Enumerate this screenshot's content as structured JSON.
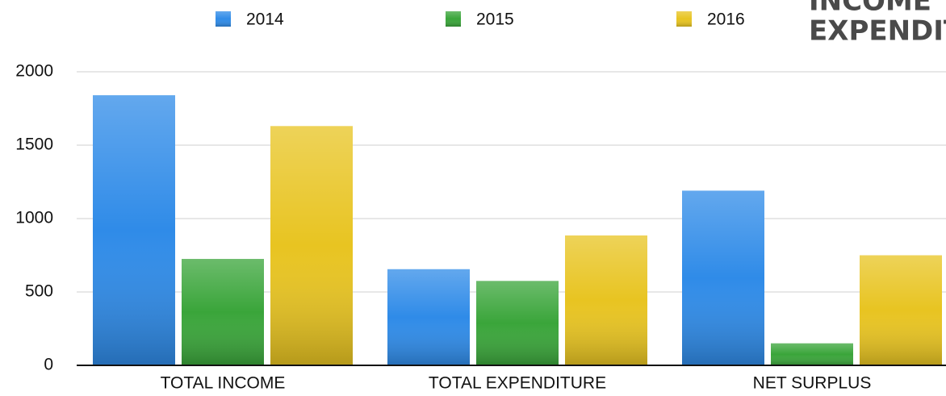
{
  "chart_data": {
    "type": "bar",
    "title": [
      "INCOME",
      "EXPENDIT"
    ],
    "categories": [
      "TOTAL INCOME",
      "TOTAL EXPENDITURE",
      "NET SURPLUS"
    ],
    "series": [
      {
        "name": "2014",
        "color": "#2f8be8",
        "values": [
          1840,
          655,
          1190
        ]
      },
      {
        "name": "2015",
        "color": "#3aa53a",
        "values": [
          725,
          575,
          150
        ]
      },
      {
        "name": "2016",
        "color": "#e8c421",
        "values": [
          1630,
          885,
          750
        ]
      }
    ],
    "ylim": [
      0,
      2000
    ],
    "yticks": [
      0,
      500,
      1000,
      1500,
      2000
    ],
    "grid": true
  }
}
